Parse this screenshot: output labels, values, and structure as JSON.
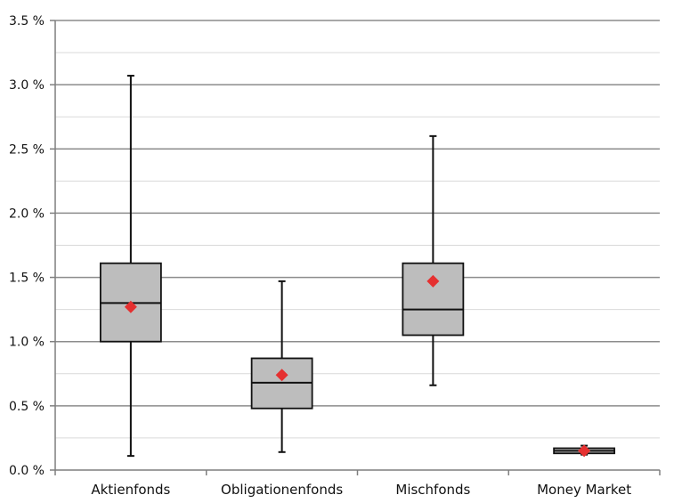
{
  "chart_data": {
    "type": "boxplot",
    "title": "",
    "xlabel": "",
    "ylabel": "",
    "ylim": [
      0,
      3.5
    ],
    "y_ticks": [
      {
        "value": 0.0,
        "label": "0.0 %"
      },
      {
        "value": 0.5,
        "label": "0.5 %"
      },
      {
        "value": 1.0,
        "label": "1.0 %"
      },
      {
        "value": 1.5,
        "label": "1.5 %"
      },
      {
        "value": 2.0,
        "label": "2.0 %"
      },
      {
        "value": 2.5,
        "label": "2.5 %"
      },
      {
        "value": 3.0,
        "label": "3.0 %"
      },
      {
        "value": 3.5,
        "label": "3.5 %"
      }
    ],
    "minor_grid_step": 0.25,
    "grid": true,
    "categories": [
      "Aktienfonds",
      "Obligationenfonds",
      "Mischfonds",
      "Money Market"
    ],
    "boxes": [
      {
        "min": 0.11,
        "q1": 1.0,
        "median": 1.3,
        "q3": 1.61,
        "max": 3.07,
        "mean": 1.27
      },
      {
        "min": 0.14,
        "q1": 0.48,
        "median": 0.68,
        "q3": 0.87,
        "max": 1.47,
        "mean": 0.74
      },
      {
        "min": 0.66,
        "q1": 1.05,
        "median": 1.25,
        "q3": 1.61,
        "max": 2.6,
        "mean": 1.47
      },
      {
        "min": 0.12,
        "q1": 0.13,
        "median": 0.15,
        "q3": 0.17,
        "max": 0.19,
        "mean": 0.15
      }
    ],
    "colors": {
      "box_fill": "#bdbdbd",
      "box_stroke": "#111111",
      "mean_marker": "#e53030",
      "major_grid": "#8c8c8c",
      "minor_grid": "#d9d9d9",
      "axis": "#7f7f7f"
    }
  }
}
